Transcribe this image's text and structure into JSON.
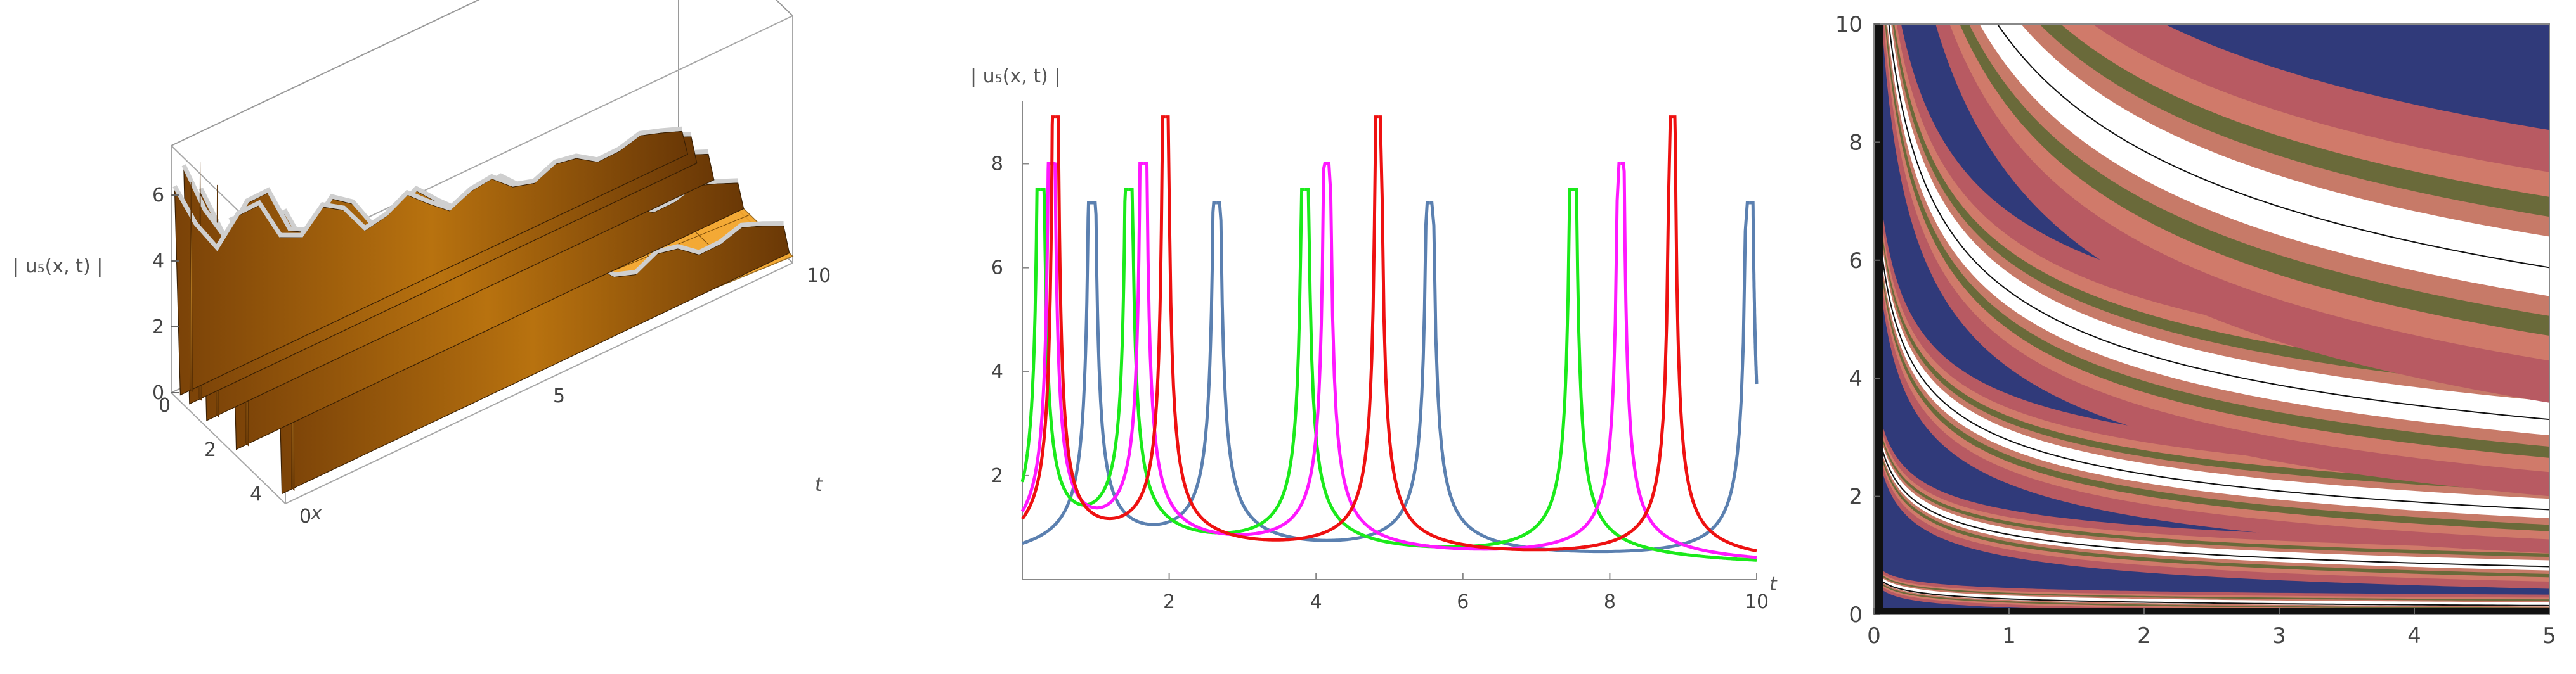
{
  "chart_data": [
    {
      "type": "surface3d",
      "zlabel": "| u₅(x, t) |",
      "xlabel": "x",
      "ylabel": "t",
      "x_ticks": [
        "0",
        "2",
        "4"
      ],
      "t_ticks": [
        "0",
        "5",
        "10"
      ],
      "z_ticks": [
        "0",
        "2",
        "4",
        "6"
      ],
      "x_range": [
        0,
        5
      ],
      "t_range": [
        0,
        10
      ],
      "z_range": [
        0,
        7.5
      ],
      "surface_color": "#f2a020",
      "ridges": [
        {
          "x": 0.15,
          "peak": 6.3
        },
        {
          "x": 0.55,
          "peak": 7.2
        },
        {
          "x": 1.3,
          "peak": 7.0
        },
        {
          "x": 2.6,
          "peak": 7.0
        },
        {
          "x": 4.6,
          "peak": 7.4
        }
      ]
    },
    {
      "type": "line",
      "ylabel": "| u₅(x, t) |",
      "xlabel": "t",
      "x_ticks": [
        2,
        4,
        6,
        8,
        10
      ],
      "y_ticks": [
        2,
        4,
        6,
        8
      ],
      "xlim": [
        0,
        10
      ],
      "ylim": [
        0,
        9.2
      ],
      "series": [
        {
          "color": "#5b80b0",
          "clip": 7.25,
          "poles": [
            0.95,
            2.65,
            5.55,
            9.9
          ]
        },
        {
          "color": "#1bea1b",
          "clip": 7.5,
          "poles": [
            0.25,
            1.45,
            3.85,
            7.5
          ]
        },
        {
          "color": "#ff18ff",
          "clip": 8.0,
          "poles": [
            0.4,
            1.65,
            4.15,
            8.15
          ]
        },
        {
          "color": "#ee1111",
          "clip": 8.9,
          "poles": [
            0.45,
            1.95,
            4.85,
            8.85
          ]
        }
      ]
    },
    {
      "type": "heatmap",
      "x_ticks": [
        "0",
        "1",
        "2",
        "3",
        "4",
        "5"
      ],
      "y_ticks": [
        "0",
        "2",
        "4",
        "6",
        "8",
        "10"
      ],
      "xlim": [
        0,
        5
      ],
      "ylim": [
        0,
        10
      ],
      "background_color": "#303a7a",
      "band_color": "#b85a62",
      "core_color": "#ffffff",
      "bands": [
        {
          "k": 0.32,
          "d": 0.5
        },
        {
          "k": 1.55,
          "d": 1.2
        },
        {
          "k": 3.35,
          "d": 2.3
        },
        {
          "k": 6.2,
          "d": 4.0
        },
        {
          "k": 11.0,
          "d": 7.0
        }
      ]
    }
  ]
}
